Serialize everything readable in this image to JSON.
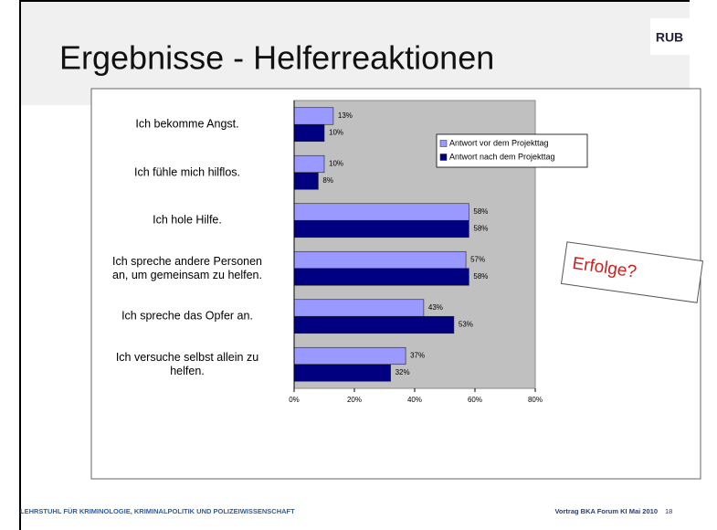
{
  "header": {
    "title": "Ergebnisse - Helferreaktionen",
    "logo": "RUB"
  },
  "annotation": "Erfolge?",
  "footer": {
    "left": "LEHRSTUHL FÜR  KRIMINOLOGIE, KRIMINALPOLITIK UND POLIZEIWISSENSCHAFT",
    "right": "Vortrag BKA Forum KI Mai 2010",
    "page": "18"
  },
  "chart_data": {
    "type": "hbar",
    "categories": [
      "Ich bekomme Angst.",
      "Ich fühle mich hilflos.",
      "Ich hole Hilfe.",
      "Ich spreche andere Personen\nan, um gemeinsam zu helfen.",
      "Ich spreche das Opfer an.",
      "Ich versuche selbst allein zu\nhelfen."
    ],
    "series": [
      {
        "name": "Antwort vor dem Projekttag",
        "color": "#9999ff",
        "values": [
          13,
          10,
          58,
          57,
          43,
          37
        ],
        "value_labels": [
          "13%",
          "10%",
          "58%",
          "57%",
          "43%",
          "37%"
        ]
      },
      {
        "name": "Antwort nach dem Projekttag",
        "color": "#000080",
        "values": [
          10,
          8,
          58,
          58,
          53,
          32
        ],
        "value_labels": [
          "10%",
          "8%",
          "58%",
          "58%",
          "53%",
          "32%"
        ]
      }
    ],
    "xlim": [
      0,
      80
    ],
    "xticks": [
      {
        "value": 0,
        "label": "0%"
      },
      {
        "value": 20,
        "label": "20%"
      },
      {
        "value": 40,
        "label": "40%"
      },
      {
        "value": 60,
        "label": "60%"
      },
      {
        "value": 80,
        "label": "80%"
      }
    ],
    "legend": "upper right",
    "plot_background": "#c0c0c0"
  }
}
